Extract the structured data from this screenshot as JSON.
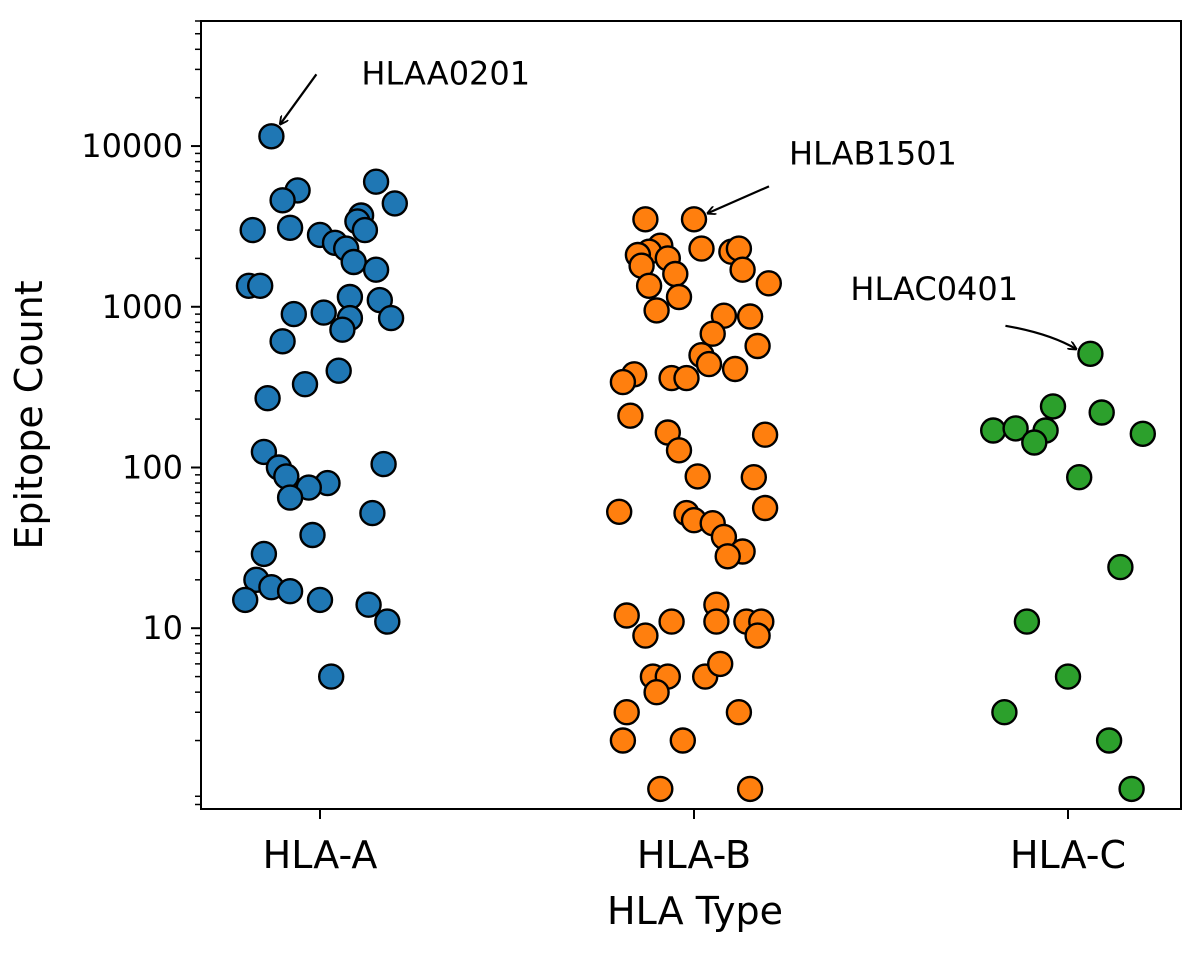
{
  "chart_data": {
    "type": "scatter",
    "title": "",
    "xlabel": "HLA Type",
    "ylabel": "Epitope Count",
    "yscale": "log",
    "ylim": [
      0.75,
      60000
    ],
    "y_ticks": [
      {
        "value": 10,
        "label": "10"
      },
      {
        "value": 100,
        "label": "100"
      },
      {
        "value": 1000,
        "label": "1000"
      },
      {
        "value": 10000,
        "label": "10000"
      }
    ],
    "categories": [
      "HLA-A",
      "HLA-B",
      "HLA-C"
    ],
    "series": [
      {
        "name": "HLA-A",
        "color": "#1f77b4",
        "points": [
          {
            "x": -0.13,
            "y": 11500
          },
          {
            "x": 0.15,
            "y": 6000
          },
          {
            "x": -0.06,
            "y": 5300
          },
          {
            "x": -0.1,
            "y": 4600
          },
          {
            "x": 0.2,
            "y": 4400
          },
          {
            "x": 0.11,
            "y": 3700
          },
          {
            "x": 0.1,
            "y": 3400
          },
          {
            "x": -0.18,
            "y": 3000
          },
          {
            "x": -0.08,
            "y": 3100
          },
          {
            "x": 0.12,
            "y": 3000
          },
          {
            "x": 0.0,
            "y": 2800
          },
          {
            "x": 0.04,
            "y": 2500
          },
          {
            "x": 0.07,
            "y": 2300
          },
          {
            "x": 0.09,
            "y": 1900
          },
          {
            "x": 0.15,
            "y": 1700
          },
          {
            "x": -0.19,
            "y": 1350
          },
          {
            "x": -0.16,
            "y": 1350
          },
          {
            "x": 0.08,
            "y": 1150
          },
          {
            "x": 0.16,
            "y": 1100
          },
          {
            "x": -0.07,
            "y": 900
          },
          {
            "x": 0.01,
            "y": 920
          },
          {
            "x": 0.08,
            "y": 850
          },
          {
            "x": 0.19,
            "y": 850
          },
          {
            "x": 0.06,
            "y": 720
          },
          {
            "x": -0.1,
            "y": 610
          },
          {
            "x": 0.05,
            "y": 400
          },
          {
            "x": -0.04,
            "y": 330
          },
          {
            "x": -0.14,
            "y": 270
          },
          {
            "x": -0.15,
            "y": 125
          },
          {
            "x": 0.17,
            "y": 105
          },
          {
            "x": -0.11,
            "y": 100
          },
          {
            "x": -0.09,
            "y": 88
          },
          {
            "x": 0.02,
            "y": 80
          },
          {
            "x": -0.03,
            "y": 75
          },
          {
            "x": -0.08,
            "y": 65
          },
          {
            "x": 0.14,
            "y": 52
          },
          {
            "x": -0.02,
            "y": 38
          },
          {
            "x": -0.15,
            "y": 29
          },
          {
            "x": -0.17,
            "y": 20
          },
          {
            "x": -0.13,
            "y": 18
          },
          {
            "x": -0.08,
            "y": 17
          },
          {
            "x": -0.2,
            "y": 15
          },
          {
            "x": 0.0,
            "y": 15
          },
          {
            "x": 0.13,
            "y": 14
          },
          {
            "x": 0.18,
            "y": 11
          },
          {
            "x": 0.03,
            "y": 5
          }
        ]
      },
      {
        "name": "HLA-B",
        "color": "#ff7f0e",
        "points": [
          {
            "x": 0.0,
            "y": 3500
          },
          {
            "x": -0.13,
            "y": 3500
          },
          {
            "x": 0.02,
            "y": 2300
          },
          {
            "x": 0.1,
            "y": 2200
          },
          {
            "x": 0.12,
            "y": 2300
          },
          {
            "x": -0.09,
            "y": 2400
          },
          {
            "x": -0.12,
            "y": 2200
          },
          {
            "x": -0.15,
            "y": 2100
          },
          {
            "x": -0.07,
            "y": 2000
          },
          {
            "x": -0.14,
            "y": 1800
          },
          {
            "x": 0.13,
            "y": 1700
          },
          {
            "x": -0.05,
            "y": 1600
          },
          {
            "x": 0.2,
            "y": 1400
          },
          {
            "x": -0.12,
            "y": 1350
          },
          {
            "x": -0.04,
            "y": 1150
          },
          {
            "x": -0.1,
            "y": 950
          },
          {
            "x": 0.08,
            "y": 880
          },
          {
            "x": 0.15,
            "y": 870
          },
          {
            "x": 0.05,
            "y": 680
          },
          {
            "x": 0.17,
            "y": 570
          },
          {
            "x": 0.02,
            "y": 500
          },
          {
            "x": 0.04,
            "y": 440
          },
          {
            "x": 0.11,
            "y": 410
          },
          {
            "x": -0.16,
            "y": 380
          },
          {
            "x": -0.06,
            "y": 360
          },
          {
            "x": -0.02,
            "y": 360
          },
          {
            "x": -0.19,
            "y": 340
          },
          {
            "x": -0.17,
            "y": 210
          },
          {
            "x": -0.07,
            "y": 165
          },
          {
            "x": 0.19,
            "y": 160
          },
          {
            "x": -0.04,
            "y": 128
          },
          {
            "x": 0.01,
            "y": 88
          },
          {
            "x": 0.16,
            "y": 87
          },
          {
            "x": -0.2,
            "y": 53
          },
          {
            "x": -0.02,
            "y": 52
          },
          {
            "x": 0.19,
            "y": 56
          },
          {
            "x": 0.0,
            "y": 47
          },
          {
            "x": 0.05,
            "y": 45
          },
          {
            "x": 0.08,
            "y": 37
          },
          {
            "x": 0.13,
            "y": 30
          },
          {
            "x": 0.09,
            "y": 28
          },
          {
            "x": -0.18,
            "y": 12
          },
          {
            "x": 0.06,
            "y": 14
          },
          {
            "x": -0.06,
            "y": 11
          },
          {
            "x": 0.06,
            "y": 11
          },
          {
            "x": 0.14,
            "y": 11
          },
          {
            "x": 0.18,
            "y": 11
          },
          {
            "x": -0.13,
            "y": 9
          },
          {
            "x": 0.17,
            "y": 9
          },
          {
            "x": -0.11,
            "y": 5
          },
          {
            "x": -0.07,
            "y": 5
          },
          {
            "x": 0.03,
            "y": 5
          },
          {
            "x": 0.07,
            "y": 6
          },
          {
            "x": -0.1,
            "y": 4
          },
          {
            "x": -0.18,
            "y": 3
          },
          {
            "x": 0.12,
            "y": 3
          },
          {
            "x": -0.19,
            "y": 2
          },
          {
            "x": -0.03,
            "y": 2
          },
          {
            "x": -0.09,
            "y": 1
          },
          {
            "x": 0.15,
            "y": 1
          }
        ]
      },
      {
        "name": "HLA-C",
        "color": "#2ca02c",
        "points": [
          {
            "x": 0.06,
            "y": 510
          },
          {
            "x": -0.04,
            "y": 240
          },
          {
            "x": 0.09,
            "y": 220
          },
          {
            "x": -0.2,
            "y": 170
          },
          {
            "x": -0.14,
            "y": 175
          },
          {
            "x": -0.06,
            "y": 170
          },
          {
            "x": 0.2,
            "y": 162
          },
          {
            "x": -0.09,
            "y": 143
          },
          {
            "x": 0.03,
            "y": 87
          },
          {
            "x": 0.14,
            "y": 24
          },
          {
            "x": -0.11,
            "y": 11
          },
          {
            "x": 0.0,
            "y": 5
          },
          {
            "x": -0.17,
            "y": 3
          },
          {
            "x": 0.11,
            "y": 2
          },
          {
            "x": 0.17,
            "y": 1
          }
        ]
      }
    ],
    "annotations": [
      {
        "text": "HLAA0201",
        "category": 0,
        "x": -0.13,
        "y": 11500
      },
      {
        "text": "HLAB1501",
        "category": 1,
        "x": 0.0,
        "y": 3500
      },
      {
        "text": "HLAC0401",
        "category": 2,
        "x": 0.06,
        "y": 510
      }
    ]
  }
}
